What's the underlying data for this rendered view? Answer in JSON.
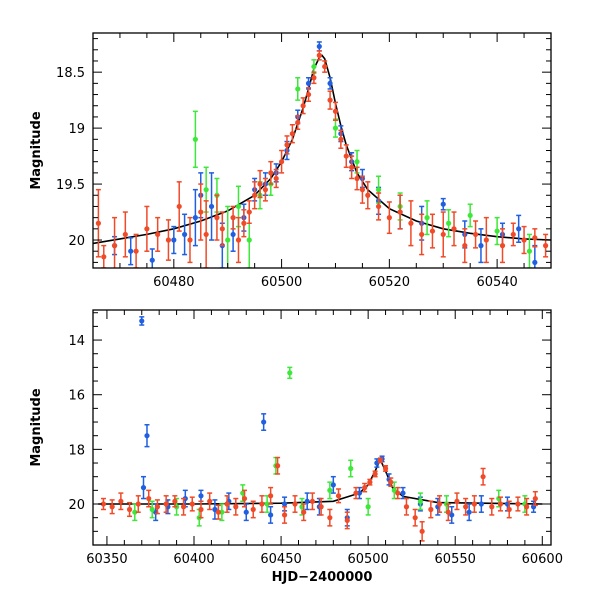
{
  "chart_data": [
    {
      "type": "scatter",
      "title": "",
      "xlabel": "",
      "ylabel": "Magnitude",
      "xlim": [
        60465,
        60550
      ],
      "ylim": [
        20.25,
        18.15
      ],
      "y_inverted": true,
      "xticks": [
        60480,
        60500,
        60520,
        60540
      ],
      "yticks": [
        18.5,
        19,
        19.5,
        20
      ],
      "series_colors": {
        "blue": "#1f5fe0",
        "green": "#3ee83a",
        "red": "#f04a28",
        "model": "#000000"
      },
      "model": {
        "x": [
          60465,
          60470,
          60475,
          60480,
          60485,
          60490,
          60495,
          60498,
          60500,
          60502,
          60504,
          60505,
          60506,
          60507,
          60507.5,
          60508,
          60509,
          60510,
          60511,
          60512,
          60514,
          60516,
          60520,
          60525,
          60530,
          60535,
          60540,
          60545,
          60550
        ],
        "y": [
          20.03,
          19.99,
          19.95,
          19.9,
          19.83,
          19.74,
          19.6,
          19.45,
          19.3,
          19.1,
          18.82,
          18.65,
          18.47,
          18.37,
          18.35,
          18.38,
          18.55,
          18.78,
          18.98,
          19.15,
          19.4,
          19.55,
          19.72,
          19.83,
          19.9,
          19.94,
          19.97,
          19.99,
          20.0
        ]
      },
      "points": {
        "blue": [
          [
            60469,
            20.05,
            0.08
          ],
          [
            60472,
            20.1,
            0.12
          ],
          [
            60476,
            20.18,
            0.1
          ],
          [
            60480,
            20.0,
            0.12
          ],
          [
            60482,
            19.95,
            0.18
          ],
          [
            60484,
            19.8,
            0.25
          ],
          [
            60485,
            19.6,
            0.2
          ],
          [
            60487,
            19.7,
            0.3
          ],
          [
            60489,
            20.05,
            0.2
          ],
          [
            60491,
            19.95,
            0.15
          ],
          [
            60493,
            19.8,
            0.12
          ],
          [
            60495,
            19.55,
            0.1
          ],
          [
            60497,
            19.5,
            0.1
          ],
          [
            60499,
            19.4,
            0.08
          ],
          [
            60501,
            19.2,
            0.08
          ],
          [
            60503,
            18.9,
            0.06
          ],
          [
            60505,
            18.6,
            0.05
          ],
          [
            60507,
            18.27,
            0.04
          ],
          [
            60509,
            18.6,
            0.05
          ],
          [
            60511,
            19.05,
            0.07
          ],
          [
            60513,
            19.3,
            0.08
          ],
          [
            60515,
            19.45,
            0.08
          ],
          [
            60518,
            19.65,
            0.12
          ],
          [
            60522,
            19.75,
            0.15
          ],
          [
            60526,
            19.85,
            0.15
          ],
          [
            60530,
            19.68,
            0.05
          ],
          [
            60534,
            19.95,
            0.12
          ],
          [
            60537,
            20.05,
            0.15
          ],
          [
            60541,
            19.95,
            0.1
          ],
          [
            60544,
            19.9,
            0.12
          ],
          [
            60547,
            20.2,
            0.15
          ]
        ],
        "green": [
          [
            60484,
            19.1,
            0.25
          ],
          [
            60486,
            19.55,
            0.2
          ],
          [
            60488,
            19.6,
            0.15
          ],
          [
            60490,
            20.0,
            0.3
          ],
          [
            60492,
            19.7,
            0.18
          ],
          [
            60494,
            20.0,
            0.25
          ],
          [
            60496,
            19.6,
            0.12
          ],
          [
            60498,
            19.5,
            0.1
          ],
          [
            60503,
            18.65,
            0.1
          ],
          [
            60506,
            18.45,
            0.06
          ],
          [
            60510,
            19.0,
            0.08
          ],
          [
            60514,
            19.3,
            0.1
          ],
          [
            60518,
            19.55,
            0.12
          ],
          [
            60522,
            19.7,
            0.12
          ],
          [
            60527,
            19.8,
            0.15
          ],
          [
            60531,
            19.85,
            0.12
          ],
          [
            60535,
            19.78,
            0.1
          ],
          [
            60540,
            19.92,
            0.12
          ],
          [
            60546,
            20.1,
            0.15
          ]
        ],
        "red": [
          [
            60466,
            19.85,
            0.3
          ],
          [
            60467,
            20.15,
            0.1
          ],
          [
            60469,
            20.05,
            0.25
          ],
          [
            60471,
            19.95,
            0.2
          ],
          [
            60473,
            20.1,
            0.15
          ],
          [
            60475,
            19.9,
            0.2
          ],
          [
            60477,
            19.95,
            0.15
          ],
          [
            60479,
            20.0,
            0.18
          ],
          [
            60481,
            19.7,
            0.22
          ],
          [
            60483,
            20.0,
            0.2
          ],
          [
            60485,
            19.75,
            0.25
          ],
          [
            60486,
            19.95,
            0.3
          ],
          [
            60488,
            19.8,
            0.2
          ],
          [
            60489,
            19.9,
            0.15
          ],
          [
            60491,
            19.8,
            0.1
          ],
          [
            60492,
            20.0,
            0.2
          ],
          [
            60493,
            19.85,
            0.12
          ],
          [
            60494,
            19.75,
            0.1
          ],
          [
            60495,
            19.6,
            0.12
          ],
          [
            60496,
            19.5,
            0.12
          ],
          [
            60497,
            19.55,
            0.1
          ],
          [
            60498,
            19.4,
            0.1
          ],
          [
            60499,
            19.45,
            0.08
          ],
          [
            60500,
            19.3,
            0.1
          ],
          [
            60501,
            19.15,
            0.08
          ],
          [
            60502,
            19.05,
            0.08
          ],
          [
            60503,
            18.95,
            0.06
          ],
          [
            60504,
            18.8,
            0.07
          ],
          [
            60505,
            18.7,
            0.06
          ],
          [
            60506,
            18.55,
            0.05
          ],
          [
            60507,
            18.35,
            0.04
          ],
          [
            60508,
            18.45,
            0.05
          ],
          [
            60509,
            18.75,
            0.08
          ],
          [
            60510,
            18.85,
            0.08
          ],
          [
            60511,
            19.1,
            0.08
          ],
          [
            60512,
            19.25,
            0.1
          ],
          [
            60513,
            19.35,
            0.1
          ],
          [
            60514,
            19.45,
            0.1
          ],
          [
            60515,
            19.55,
            0.12
          ],
          [
            60516,
            19.6,
            0.12
          ],
          [
            60518,
            19.7,
            0.12
          ],
          [
            60520,
            19.8,
            0.14
          ],
          [
            60522,
            19.75,
            0.15
          ],
          [
            60524,
            19.85,
            0.2
          ],
          [
            60526,
            19.95,
            0.18
          ],
          [
            60528,
            19.92,
            0.15
          ],
          [
            60530,
            19.95,
            0.2
          ],
          [
            60532,
            19.9,
            0.15
          ],
          [
            60534,
            20.05,
            0.15
          ],
          [
            60536,
            19.95,
            0.12
          ],
          [
            60538,
            20.0,
            0.2
          ],
          [
            60541,
            20.05,
            0.15
          ],
          [
            60543,
            19.95,
            0.1
          ],
          [
            60545,
            20.0,
            0.12
          ],
          [
            60547,
            19.98,
            0.08
          ],
          [
            60549,
            20.05,
            0.1
          ]
        ]
      }
    },
    {
      "type": "scatter",
      "title": "",
      "xlabel": "HJD−2400000",
      "ylabel": "Magnitude",
      "xlim": [
        60342,
        60605
      ],
      "ylim": [
        21.5,
        12.9
      ],
      "y_inverted": true,
      "xticks": [
        60350,
        60400,
        60450,
        60500,
        60550,
        60600
      ],
      "yticks": [
        14,
        16,
        18,
        20
      ],
      "series_colors": {
        "blue": "#1f5fe0",
        "green": "#3ee83a",
        "red": "#f04a28",
        "model": "#000000"
      },
      "model": {
        "x": [
          60345,
          60400,
          60450,
          60480,
          60495,
          60500,
          60504,
          60507,
          60510,
          60514,
          60520,
          60540,
          60600
        ],
        "y": [
          20.0,
          20.0,
          19.97,
          19.9,
          19.6,
          19.3,
          18.8,
          18.37,
          18.8,
          19.4,
          19.72,
          19.95,
          20.0
        ]
      },
      "points": {
        "blue": [
          [
            60370,
            13.3,
            0.15
          ],
          [
            60371,
            19.4,
            0.4
          ],
          [
            60373,
            17.5,
            0.4
          ],
          [
            60378,
            20.3,
            0.3
          ],
          [
            60385,
            20.1,
            0.25
          ],
          [
            60395,
            19.8,
            0.3
          ],
          [
            60404,
            19.7,
            0.2
          ],
          [
            60412,
            20.2,
            0.35
          ],
          [
            60420,
            19.9,
            0.3
          ],
          [
            60430,
            20.3,
            0.3
          ],
          [
            60440,
            17.0,
            0.3
          ],
          [
            60444,
            20.4,
            0.3
          ],
          [
            60452,
            20.0,
            0.25
          ],
          [
            60465,
            19.9,
            0.3
          ],
          [
            60472,
            20.1,
            0.3
          ],
          [
            60480,
            19.3,
            0.3
          ],
          [
            60488,
            20.5,
            0.3
          ],
          [
            60495,
            19.6,
            0.2
          ],
          [
            60505,
            18.5,
            0.15
          ],
          [
            60508,
            18.35,
            0.1
          ],
          [
            60512,
            19.1,
            0.2
          ],
          [
            60520,
            19.6,
            0.2
          ],
          [
            60530,
            20.0,
            0.25
          ],
          [
            60540,
            20.1,
            0.3
          ],
          [
            60548,
            20.4,
            0.3
          ],
          [
            60558,
            20.3,
            0.3
          ],
          [
            60565,
            20.0,
            0.3
          ],
          [
            60580,
            20.0,
            0.25
          ],
          [
            60595,
            20.1,
            0.2
          ]
        ],
        "green": [
          [
            60366,
            20.3,
            0.3
          ],
          [
            60376,
            20.2,
            0.3
          ],
          [
            60390,
            20.1,
            0.3
          ],
          [
            60403,
            20.5,
            0.3
          ],
          [
            60416,
            20.3,
            0.3
          ],
          [
            60428,
            19.6,
            0.3
          ],
          [
            60442,
            20.0,
            0.3
          ],
          [
            60447,
            18.6,
            0.3
          ],
          [
            60455,
            15.2,
            0.2
          ],
          [
            60462,
            20.1,
            0.3
          ],
          [
            60478,
            19.5,
            0.3
          ],
          [
            60490,
            18.7,
            0.3
          ],
          [
            60500,
            20.1,
            0.3
          ],
          [
            60515,
            19.5,
            0.3
          ],
          [
            60530,
            19.9,
            0.3
          ],
          [
            60545,
            20.0,
            0.3
          ],
          [
            60575,
            19.8,
            0.3
          ],
          [
            60590,
            20.0,
            0.3
          ]
        ],
        "red": [
          [
            60348,
            20.0,
            0.2
          ],
          [
            60353,
            20.1,
            0.25
          ],
          [
            60358,
            19.9,
            0.3
          ],
          [
            60363,
            20.2,
            0.25
          ],
          [
            60368,
            20.0,
            0.3
          ],
          [
            60374,
            19.8,
            0.3
          ],
          [
            60379,
            20.1,
            0.25
          ],
          [
            60384,
            20.0,
            0.3
          ],
          [
            60389,
            19.9,
            0.2
          ],
          [
            60394,
            20.1,
            0.3
          ],
          [
            60399,
            20.0,
            0.25
          ],
          [
            60404,
            20.2,
            0.3
          ],
          [
            60409,
            19.9,
            0.3
          ],
          [
            60414,
            20.3,
            0.25
          ],
          [
            60419,
            20.0,
            0.3
          ],
          [
            60424,
            20.1,
            0.3
          ],
          [
            60429,
            19.8,
            0.3
          ],
          [
            60434,
            20.2,
            0.3
          ],
          [
            60439,
            20.0,
            0.3
          ],
          [
            60444,
            19.7,
            0.3
          ],
          [
            60448,
            18.6,
            0.3
          ],
          [
            60452,
            20.4,
            0.3
          ],
          [
            60458,
            20.0,
            0.3
          ],
          [
            60463,
            20.3,
            0.3
          ],
          [
            60468,
            19.9,
            0.3
          ],
          [
            60473,
            20.1,
            0.3
          ],
          [
            60478,
            20.5,
            0.3
          ],
          [
            60483,
            19.7,
            0.25
          ],
          [
            60488,
            20.6,
            0.3
          ],
          [
            60493,
            19.6,
            0.2
          ],
          [
            60498,
            19.4,
            0.15
          ],
          [
            60501,
            19.2,
            0.1
          ],
          [
            60504,
            18.9,
            0.1
          ],
          [
            60507,
            18.4,
            0.08
          ],
          [
            60510,
            18.7,
            0.1
          ],
          [
            60513,
            19.2,
            0.15
          ],
          [
            60517,
            19.6,
            0.2
          ],
          [
            60522,
            20.1,
            0.3
          ],
          [
            60527,
            20.5,
            0.3
          ],
          [
            60531,
            21.0,
            0.35
          ],
          [
            60536,
            20.2,
            0.3
          ],
          [
            60541,
            20.0,
            0.3
          ],
          [
            60546,
            20.3,
            0.3
          ],
          [
            60551,
            19.9,
            0.3
          ],
          [
            60556,
            20.1,
            0.3
          ],
          [
            60561,
            20.0,
            0.3
          ],
          [
            60566,
            19.0,
            0.3
          ],
          [
            60571,
            20.1,
            0.3
          ],
          [
            60576,
            20.0,
            0.25
          ],
          [
            60581,
            20.2,
            0.3
          ],
          [
            60586,
            20.0,
            0.25
          ],
          [
            60591,
            20.1,
            0.3
          ],
          [
            60596,
            19.8,
            0.25
          ]
        ]
      }
    }
  ]
}
